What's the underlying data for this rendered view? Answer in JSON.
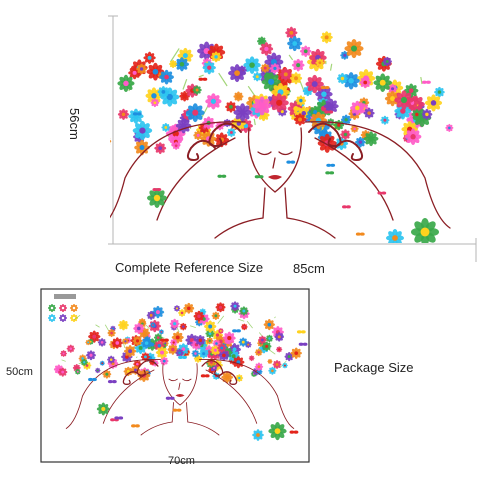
{
  "top_section": {
    "height_label": "56cm",
    "width_label": "85cm",
    "caption": "Complete Reference Size"
  },
  "bottom_section": {
    "height_label": "50cm",
    "width_label": "70cm",
    "caption": "Package Size"
  },
  "colors": {
    "hair_line": "#8b1e24",
    "dimension_line": "#b5b5b5",
    "flower_palette": [
      "#e8376b",
      "#f28a1e",
      "#ffd21e",
      "#2ec4f0",
      "#7a3fc1",
      "#e3241b",
      "#3aa84a",
      "#ff5cc8",
      "#1e8fe0"
    ]
  }
}
